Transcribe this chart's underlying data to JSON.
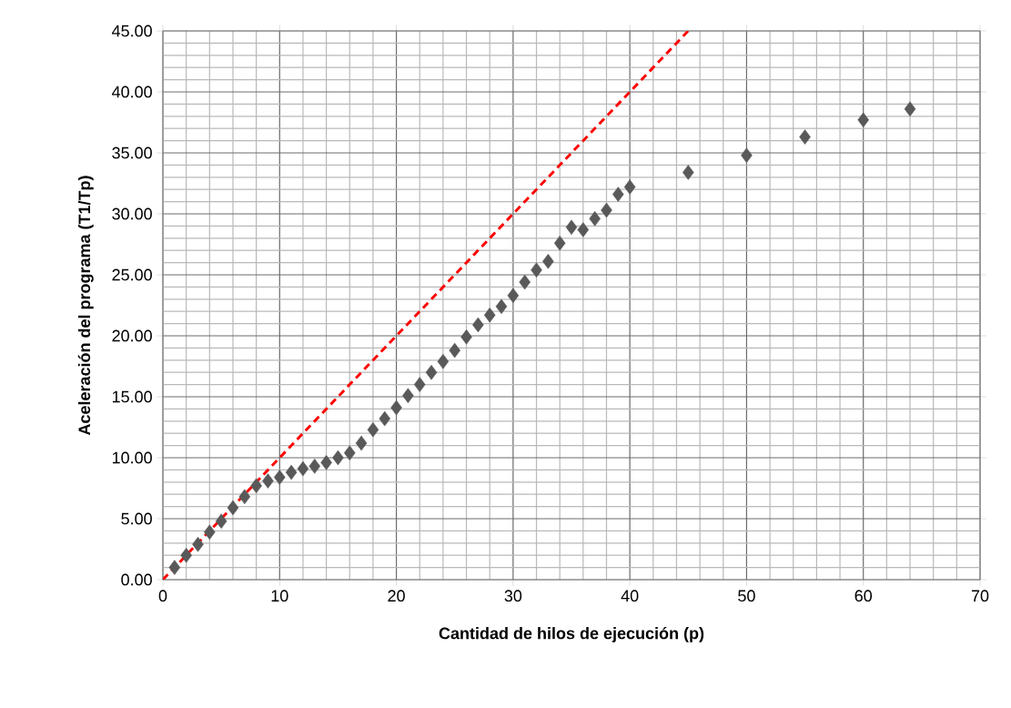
{
  "chart_data": {
    "type": "scatter",
    "xlabel": "Cantidad de hilos de ejecución (p)",
    "ylabel": "Aceleración del programa (T1/Tp)",
    "xlim": [
      0,
      70
    ],
    "ylim": [
      0,
      45
    ],
    "xticks": [
      0,
      10,
      20,
      30,
      40,
      50,
      60,
      70
    ],
    "yticks": [
      {
        "value": 0,
        "label": "0.00"
      },
      {
        "value": 5,
        "label": "5.00"
      },
      {
        "value": 10,
        "label": "10.00"
      },
      {
        "value": 15,
        "label": "15.00"
      },
      {
        "value": 20,
        "label": "20.00"
      },
      {
        "value": 25,
        "label": "25.00"
      },
      {
        "value": 30,
        "label": "30.00"
      },
      {
        "value": 35,
        "label": "35.00"
      },
      {
        "value": 40,
        "label": "40.00"
      },
      {
        "value": 45,
        "label": "45.00"
      }
    ],
    "grid": true,
    "series": [
      {
        "marker": "diamond",
        "color": "#595959",
        "x": [
          1,
          2,
          3,
          4,
          5,
          6,
          7,
          8,
          9,
          10,
          11,
          12,
          13,
          14,
          15,
          16,
          17,
          18,
          19,
          20,
          21,
          22,
          23,
          24,
          25,
          26,
          27,
          28,
          29,
          30,
          31,
          32,
          33,
          34,
          35,
          36,
          37,
          38,
          39,
          40,
          45,
          50,
          55,
          60,
          64
        ],
        "values": [
          1.0,
          2.0,
          2.9,
          3.9,
          4.8,
          5.9,
          6.8,
          7.7,
          8.1,
          8.4,
          8.8,
          9.1,
          9.3,
          9.6,
          10.0,
          10.4,
          11.2,
          12.3,
          13.2,
          14.1,
          15.1,
          16.0,
          17.0,
          17.9,
          18.8,
          19.9,
          20.9,
          21.7,
          22.4,
          23.3,
          24.4,
          25.4,
          26.1,
          27.6,
          28.9,
          28.7,
          29.6,
          30.3,
          31.6,
          32.2,
          33.4,
          34.8,
          36.3,
          37.7,
          38.6
        ]
      },
      {
        "type": "line",
        "marker": "none",
        "line_style": "dashed",
        "color": "#ff0000",
        "x": [
          0,
          45
        ],
        "values": [
          0,
          45
        ]
      }
    ]
  }
}
